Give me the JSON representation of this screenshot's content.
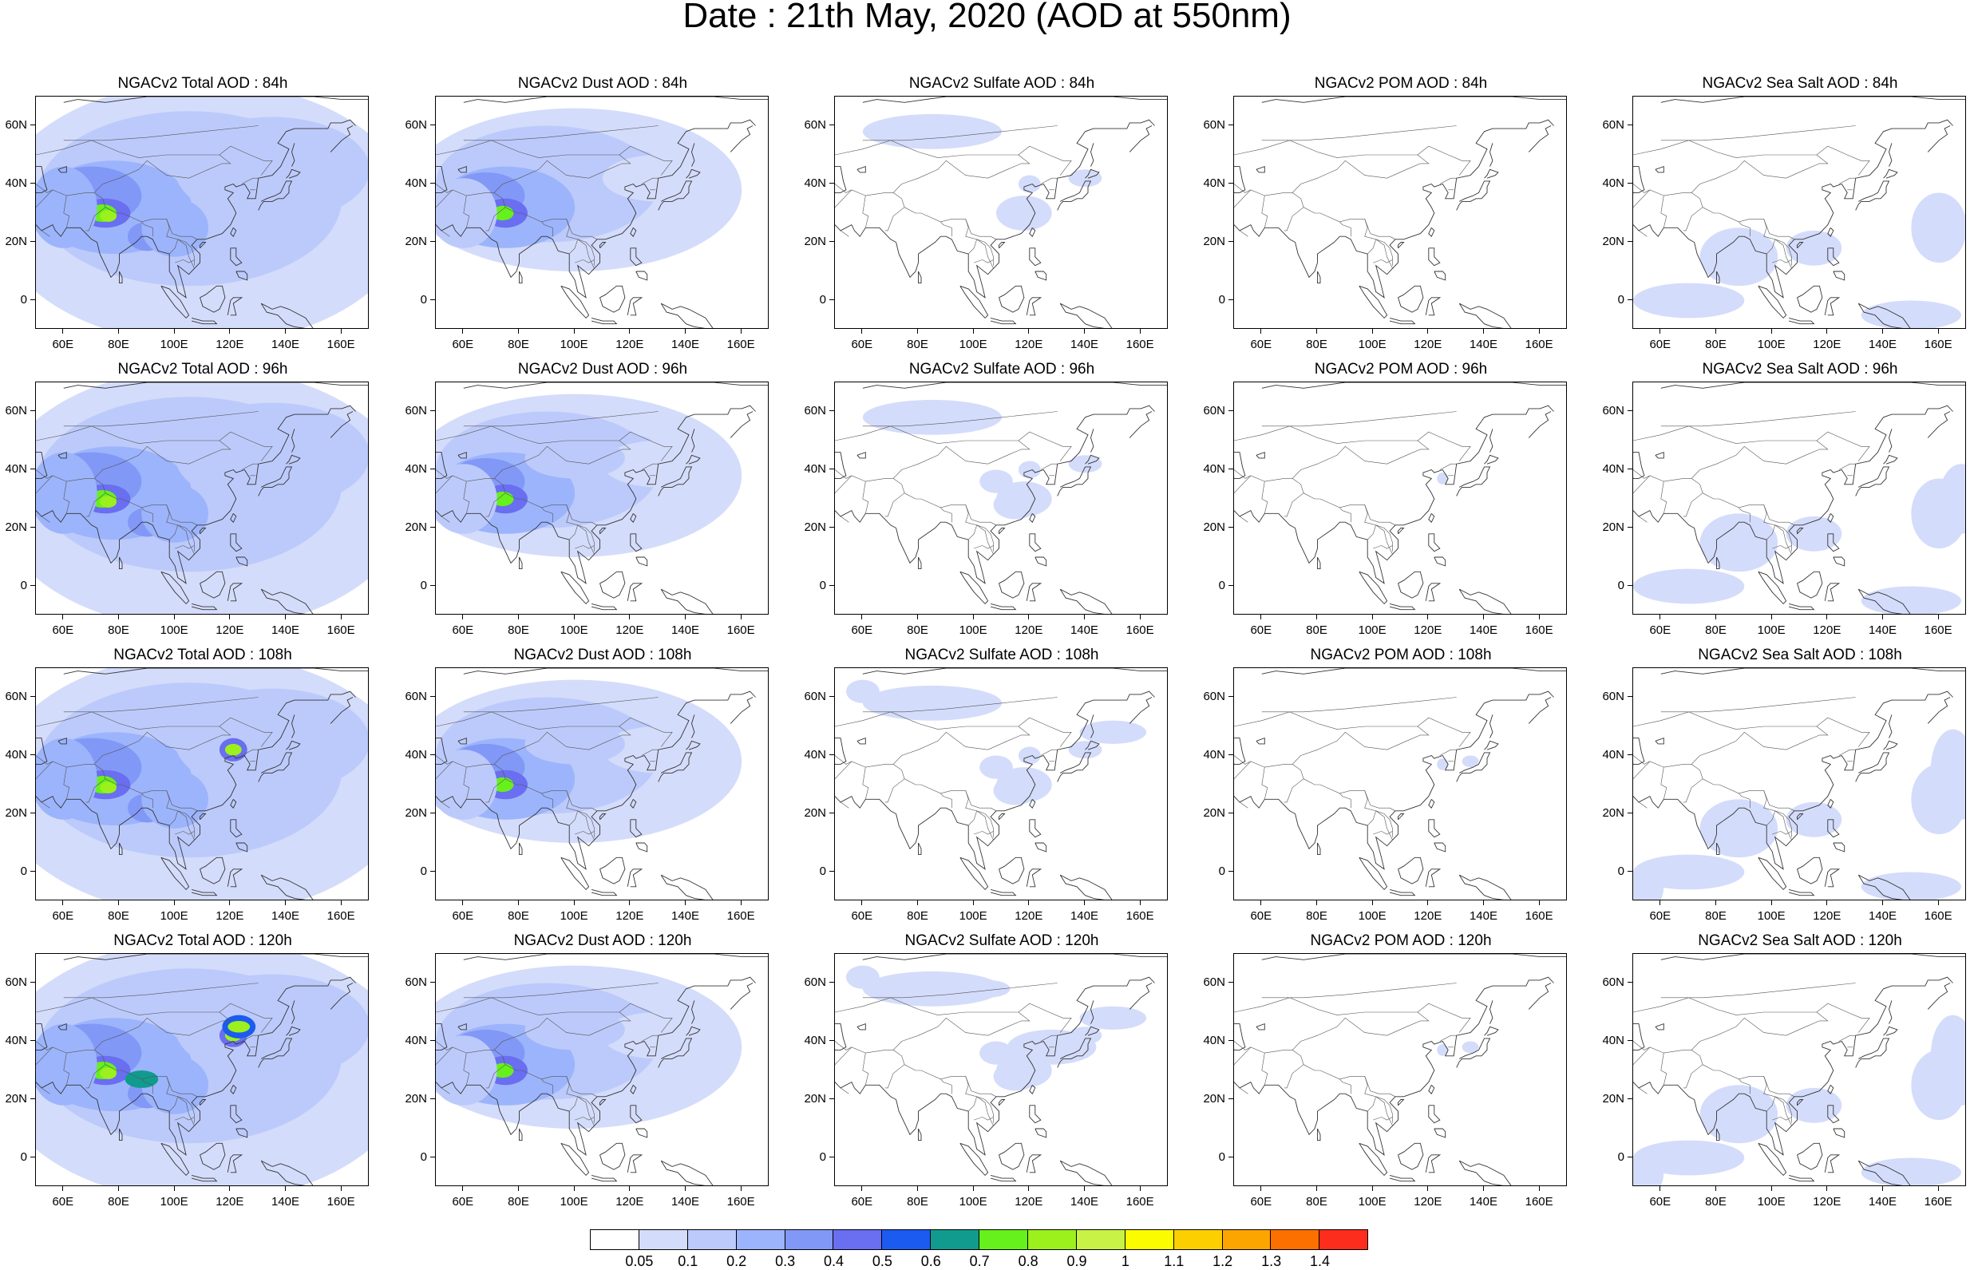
{
  "title": "Date : 21th May, 2020 (AOD at 550nm)",
  "panel_titles": [
    [
      "NGACv2 Total AOD : 84h",
      "NGACv2 Dust AOD : 84h",
      "NGACv2 Sulfate AOD : 84h",
      "NGACv2 POM AOD : 84h",
      "NGACv2 Sea Salt AOD : 84h"
    ],
    [
      "NGACv2 Total AOD : 96h",
      "NGACv2 Dust AOD : 96h",
      "NGACv2 Sulfate AOD : 96h",
      "NGACv2 POM AOD : 96h",
      "NGACv2 Sea Salt AOD : 96h"
    ],
    [
      "NGACv2 Total AOD : 108h",
      "NGACv2 Dust AOD : 108h",
      "NGACv2 Sulfate AOD : 108h",
      "NGACv2 POM AOD : 108h",
      "NGACv2 Sea Salt AOD : 108h"
    ],
    [
      "NGACv2 Total AOD : 120h",
      "NGACv2 Dust AOD : 120h",
      "NGACv2 Sulfate AOD : 120h",
      "NGACv2 POM AOD : 120h",
      "NGACv2 Sea Salt  AOD : 120h"
    ]
  ],
  "axes": {
    "lon_range": [
      50,
      170
    ],
    "lat_range": [
      -10,
      70
    ],
    "x_ticks": [
      "60E",
      "80E",
      "100E",
      "120E",
      "140E",
      "160E"
    ],
    "x_tick_values": [
      60,
      80,
      100,
      120,
      140,
      160
    ],
    "y_ticks": [
      "60N",
      "40N",
      "20N",
      "0"
    ],
    "y_tick_values": [
      60,
      40,
      20,
      0
    ]
  },
  "colorbar": {
    "colors": [
      "#ffffff",
      "#d4dcfb",
      "#bccafb",
      "#9cb4fb",
      "#8298f6",
      "#6a6ef0",
      "#1c5bf0",
      "#119b8e",
      "#66f01c",
      "#9cf01c",
      "#c8f245",
      "#fcfc00",
      "#fcd000",
      "#fca400",
      "#fc7000",
      "#fc2d1c"
    ],
    "labels": [
      "0.05",
      "0.1",
      "0.2",
      "0.3",
      "0.4",
      "0.5",
      "0.6",
      "0.7",
      "0.8",
      "0.9",
      "1",
      "1.1",
      "1.2",
      "1.3",
      "1.4"
    ]
  },
  "map_data": {
    "levels_by_species": {
      "total": "broad light-to-mid blue coverage over Asia with dust cores near 30N 75E reaching 0.7-0.9",
      "dust": "mid blue over Arabia, central Asia and northern China, peak near 30N 75E",
      "sulfate": "sparse light blue patches over eastern China and Siberia",
      "pom": "near zero almost everywhere",
      "sea_salt": "light blue over Bay of Bengal, Indian Ocean and western Pacific"
    }
  }
}
